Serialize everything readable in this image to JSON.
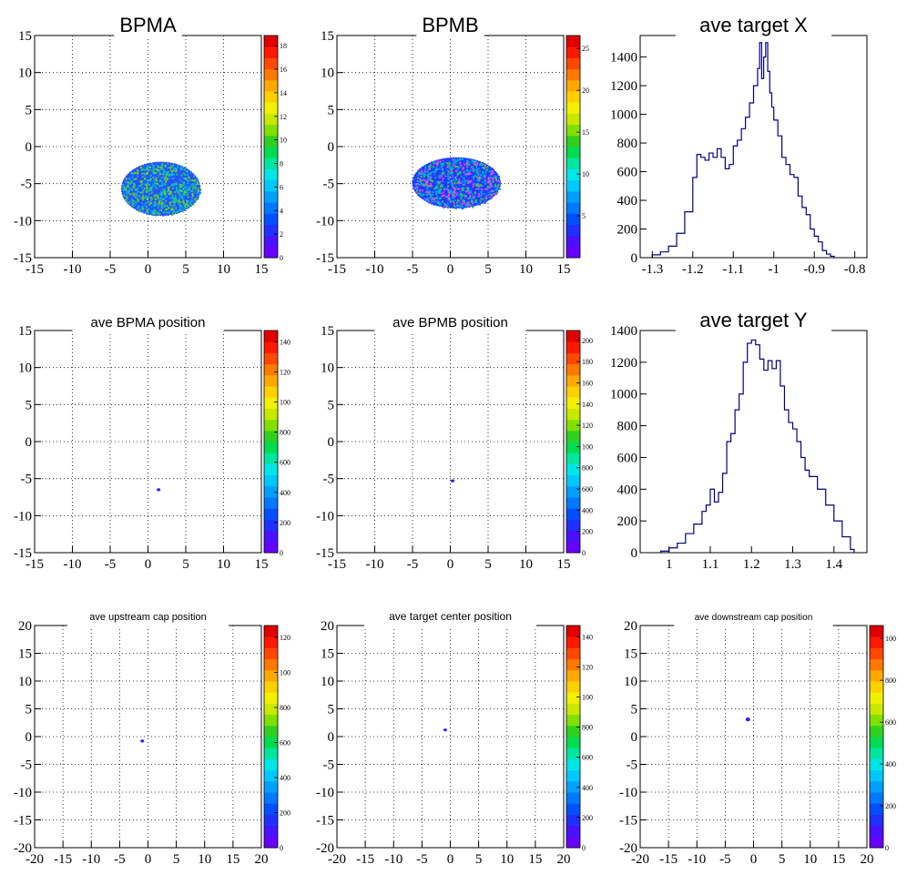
{
  "chart_data": [
    {
      "type": "heatmap",
      "title": "BPMA",
      "xlim": [
        -15,
        15
      ],
      "ylim": [
        -15,
        15
      ],
      "xticks": [
        -15,
        -10,
        -5,
        0,
        5,
        10,
        15
      ],
      "yticks": [
        -15,
        -10,
        -5,
        0,
        5,
        10,
        15
      ],
      "grid": true,
      "palette": {
        "max": 18,
        "labels": [
          "0",
          "2",
          "4",
          "6",
          "8",
          "10",
          "12",
          "14",
          "16",
          "18"
        ]
      },
      "blob": {
        "cx": 1.7,
        "cy": -5.7,
        "rx": 5.2,
        "ry": 3.6,
        "colors": [
          "#2850ff",
          "#00a0ff",
          "#00c8c8",
          "#30c060",
          "#7ddc00"
        ]
      }
    },
    {
      "type": "heatmap",
      "title": "BPMB",
      "xlim": [
        -15,
        15
      ],
      "ylim": [
        -15,
        15
      ],
      "xticks": [
        -15,
        -10,
        -5,
        0,
        5,
        10,
        15
      ],
      "yticks": [
        -15,
        -10,
        -5,
        0,
        5,
        10,
        15
      ],
      "grid": true,
      "palette": {
        "max": 27,
        "labels": [
          "5",
          "10",
          "15",
          "20",
          "25"
        ]
      },
      "blob": {
        "cx": 0.8,
        "cy": -4.9,
        "rx": 5.8,
        "ry": 3.4,
        "colors": [
          "#1e3cff",
          "#0090ff",
          "#00bcd0",
          "#40c840",
          "#ff40ff"
        ]
      }
    },
    {
      "type": "line",
      "title": "ave target X",
      "xlim": [
        -1.33,
        -0.77
      ],
      "ylim": [
        0,
        1550
      ],
      "xticks": [
        -1.3,
        -1.2,
        -1.1,
        -1,
        -0.9,
        -0.8
      ],
      "xtick_labels": [
        "-1.3",
        "-1.2",
        "-1.1",
        "-1",
        "-0.9",
        "-0.8"
      ],
      "yticks": [
        0,
        200,
        400,
        600,
        800,
        1000,
        1200,
        1400
      ],
      "grid": false,
      "step": true,
      "x": [
        -1.3,
        -1.28,
        -1.26,
        -1.24,
        -1.22,
        -1.2,
        -1.19,
        -1.18,
        -1.17,
        -1.16,
        -1.15,
        -1.14,
        -1.13,
        -1.12,
        -1.11,
        -1.1,
        -1.09,
        -1.08,
        -1.07,
        -1.06,
        -1.05,
        -1.04,
        -1.035,
        -1.03,
        -1.025,
        -1.02,
        -1.015,
        -1.01,
        -1.005,
        -1.0,
        -0.99,
        -0.98,
        -0.97,
        -0.96,
        -0.95,
        -0.94,
        -0.93,
        -0.92,
        -0.91,
        -0.9,
        -0.89,
        -0.88,
        -0.87,
        -0.86
      ],
      "y": [
        20,
        40,
        80,
        170,
        320,
        560,
        720,
        700,
        680,
        730,
        700,
        760,
        700,
        620,
        650,
        780,
        820,
        900,
        980,
        1080,
        1200,
        1320,
        1500,
        1250,
        1400,
        1500,
        1300,
        1150,
        1050,
        960,
        850,
        700,
        650,
        580,
        560,
        430,
        350,
        300,
        200,
        150,
        110,
        50,
        25,
        10
      ]
    },
    {
      "type": "heatmap",
      "title": "ave BPMA position",
      "xlim": [
        -15,
        15
      ],
      "ylim": [
        -15,
        15
      ],
      "xticks": [
        -15,
        -10,
        -5,
        0,
        5,
        10,
        15
      ],
      "yticks": [
        -15,
        -10,
        -5,
        0,
        5,
        10,
        15
      ],
      "grid": true,
      "palette": {
        "max": 145,
        "labels": [
          "0",
          "200",
          "400",
          "600",
          "800",
          "100",
          "120",
          "140"
        ]
      },
      "blob": {
        "cx": 1.4,
        "cy": -6.5,
        "rx": 0.25,
        "ry": 0.2,
        "colors": [
          "#3020ff"
        ]
      }
    },
    {
      "type": "heatmap",
      "title": "ave BPMB position",
      "xlim": [
        -15,
        15
      ],
      "ylim": [
        -15,
        15
      ],
      "xticks": [
        -15,
        -10,
        -5,
        0,
        5,
        10,
        15
      ],
      "yticks": [
        -15,
        -10,
        -5,
        0,
        5,
        10,
        15
      ],
      "grid": true,
      "palette": {
        "max": 205,
        "labels": [
          "0",
          "200",
          "400",
          "600",
          "800",
          "100",
          "120",
          "140",
          "160",
          "180",
          "200"
        ]
      },
      "blob": {
        "cx": 0.3,
        "cy": -5.3,
        "rx": 0.25,
        "ry": 0.2,
        "colors": [
          "#3020ff"
        ]
      }
    },
    {
      "type": "line",
      "title": "ave target Y",
      "xlim": [
        0.93,
        1.48
      ],
      "ylim": [
        0,
        1400
      ],
      "xticks": [
        1.0,
        1.1,
        1.2,
        1.3,
        1.4
      ],
      "xtick_labels": [
        "1",
        "1.1",
        "1.2",
        "1.3",
        "1.4"
      ],
      "yticks": [
        0,
        200,
        400,
        600,
        800,
        1000,
        1200,
        1400
      ],
      "grid": false,
      "step": true,
      "x": [
        0.98,
        1.0,
        1.02,
        1.04,
        1.06,
        1.08,
        1.09,
        1.1,
        1.11,
        1.12,
        1.13,
        1.14,
        1.15,
        1.16,
        1.17,
        1.18,
        1.19,
        1.2,
        1.21,
        1.22,
        1.23,
        1.24,
        1.25,
        1.26,
        1.27,
        1.28,
        1.29,
        1.3,
        1.31,
        1.32,
        1.33,
        1.34,
        1.36,
        1.38,
        1.4,
        1.42,
        1.44
      ],
      "y": [
        10,
        30,
        60,
        120,
        180,
        260,
        300,
        400,
        320,
        380,
        500,
        700,
        750,
        900,
        1000,
        1200,
        1320,
        1340,
        1310,
        1220,
        1150,
        1210,
        1160,
        1210,
        1050,
        900,
        820,
        780,
        700,
        600,
        520,
        480,
        400,
        300,
        200,
        100,
        20
      ]
    },
    {
      "type": "heatmap",
      "title": "ave upstream cap position",
      "xlim": [
        -20,
        20
      ],
      "ylim": [
        -20,
        20
      ],
      "xticks": [
        -20,
        -15,
        -10,
        -5,
        0,
        5,
        10,
        15,
        20
      ],
      "yticks": [
        -20,
        -15,
        -10,
        -5,
        0,
        5,
        10,
        15,
        20
      ],
      "grid": true,
      "palette": {
        "max": 125,
        "labels": [
          "0",
          "200",
          "400",
          "600",
          "800",
          "100",
          "120"
        ]
      },
      "blob": {
        "cx": -1.0,
        "cy": -0.8,
        "rx": 0.3,
        "ry": 0.25,
        "colors": [
          "#3020ff"
        ]
      }
    },
    {
      "type": "heatmap",
      "title": "ave target center  position",
      "xlim": [
        -20,
        20
      ],
      "ylim": [
        -20,
        20
      ],
      "xticks": [
        -20,
        -15,
        -10,
        -5,
        0,
        5,
        10,
        15,
        20
      ],
      "yticks": [
        -20,
        -15,
        -10,
        -5,
        0,
        5,
        10,
        15,
        20
      ],
      "grid": true,
      "palette": {
        "max": 145,
        "labels": [
          "0",
          "200",
          "400",
          "600",
          "800",
          "100",
          "120",
          "140"
        ]
      },
      "blob": {
        "cx": -0.9,
        "cy": 1.2,
        "rx": 0.3,
        "ry": 0.25,
        "colors": [
          "#3020ff"
        ]
      }
    },
    {
      "type": "heatmap",
      "title": "ave downstream cap position",
      "xlim": [
        -20,
        20
      ],
      "ylim": [
        -20,
        20
      ],
      "xticks": [
        -20,
        -15,
        -10,
        -5,
        0,
        5,
        10,
        15,
        20
      ],
      "yticks": [
        -20,
        -15,
        -10,
        -5,
        0,
        5,
        10,
        15,
        20
      ],
      "grid": true,
      "palette": {
        "max": 118,
        "labels": [
          "0",
          "200",
          "400",
          "600",
          "800",
          "100"
        ]
      },
      "blob": {
        "cx": -1.0,
        "cy": 3.1,
        "rx": 0.4,
        "ry": 0.35,
        "colors": [
          "#3020ff"
        ]
      }
    }
  ]
}
